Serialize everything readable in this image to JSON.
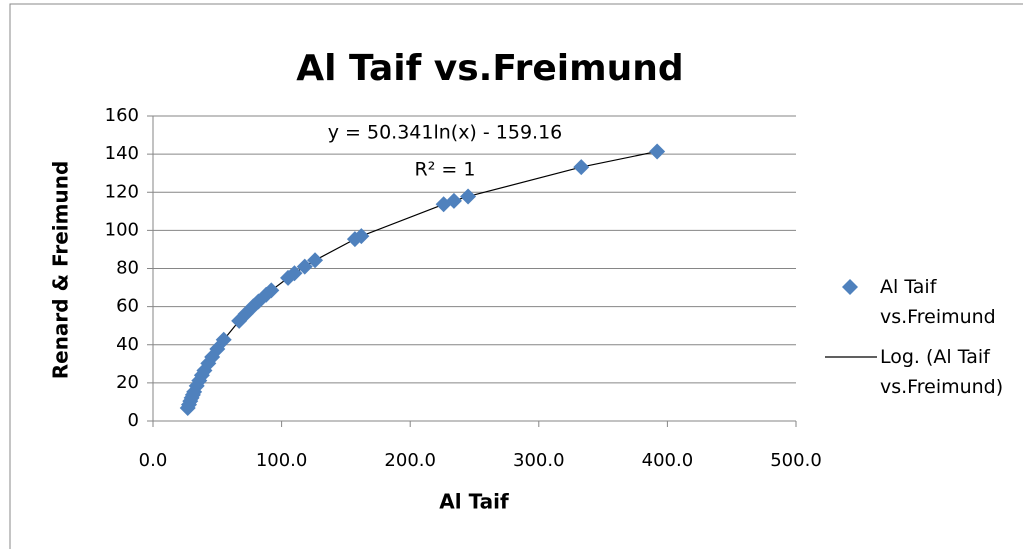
{
  "chart_data": {
    "type": "scatter",
    "title": "Al Taif vs.Freimund",
    "x_label": "Al Taif",
    "y_label": "Renard & Freimund",
    "annotations": [
      "y = 50.341ln(x) - 159.16",
      "R² = 1"
    ],
    "series": [
      {
        "name": "Al Taif vs.Freimund",
        "color": "#4f81bd",
        "x": [
          27,
          28,
          29,
          30,
          31,
          32,
          34,
          36,
          38,
          40,
          43,
          46,
          50,
          55,
          67,
          72,
          78,
          82,
          88,
          92,
          105,
          110,
          118,
          126,
          157,
          162,
          226,
          234,
          245,
          333,
          392
        ],
        "values": [
          6.8,
          8.6,
          10.4,
          12.1,
          13.7,
          15.3,
          18.4,
          21.2,
          24.0,
          26.5,
          30.2,
          33.6,
          37.8,
          42.6,
          52.5,
          56.1,
          60.2,
          62.7,
          66.2,
          68.5,
          75.1,
          77.5,
          81.0,
          84.3,
          95.4,
          97.0,
          113.7,
          115.5,
          117.8,
          133.2,
          141.4
        ]
      }
    ],
    "trendline": {
      "name": "Log. (Al Taif vs.Freimund)",
      "color": "#000000"
    },
    "xlim": [
      0,
      500
    ],
    "xticks": [
      {
        "value": 0,
        "label": "0.0"
      },
      {
        "value": 100,
        "label": "100.0"
      },
      {
        "value": 200,
        "label": "200.0"
      },
      {
        "value": 300,
        "label": "300.0"
      },
      {
        "value": 400,
        "label": "400.0"
      },
      {
        "value": 500,
        "label": "500.0"
      }
    ],
    "ylim": [
      0,
      160
    ],
    "yticks": [
      0,
      20,
      40,
      60,
      80,
      100,
      120,
      140,
      160
    ],
    "grid": true,
    "legend": "right"
  }
}
